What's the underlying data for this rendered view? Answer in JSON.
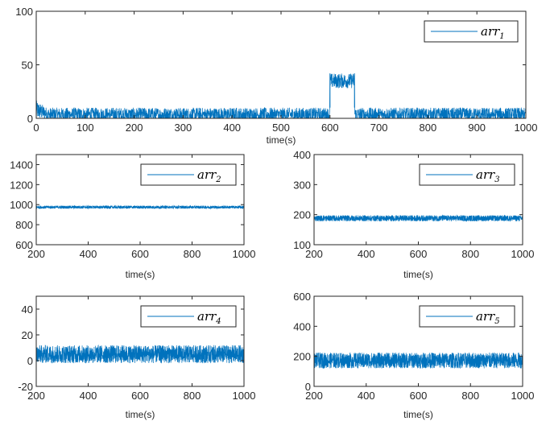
{
  "chart_data": [
    {
      "type": "line",
      "xlabel": "time(s)",
      "xlim": [
        0,
        1000
      ],
      "ylim": [
        0,
        100
      ],
      "xticks": [
        "0",
        "100",
        "200",
        "300",
        "400",
        "500",
        "600",
        "700",
        "800",
        "900",
        "1000"
      ],
      "yticks": [
        "0",
        "50",
        "100"
      ],
      "legend": {
        "position": "top-right",
        "base": "arr",
        "sub": "1"
      },
      "series": [
        {
          "baseline": 0,
          "noise_range": [
            -3,
            10
          ],
          "initial_spike": 17,
          "step": {
            "x_range": [
              600,
              650
            ],
            "y_range": [
              28,
              42
            ]
          }
        }
      ],
      "color": "#0072BD"
    },
    {
      "type": "line",
      "xlabel": "time(s)",
      "xlim": [
        200,
        1000
      ],
      "ylim": [
        600,
        1500
      ],
      "xticks": [
        "200",
        "400",
        "600",
        "800",
        "1000"
      ],
      "yticks": [
        "600",
        "800",
        "1000",
        "1200",
        "1400"
      ],
      "legend": {
        "position": "top-right",
        "base": "arr",
        "sub": "2"
      },
      "series": [
        {
          "noise_range": [
            960,
            990
          ]
        }
      ],
      "color": "#0072BD"
    },
    {
      "type": "line",
      "xlabel": "time(s)",
      "xlim": [
        200,
        1000
      ],
      "ylim": [
        100,
        400
      ],
      "xticks": [
        "200",
        "400",
        "600",
        "800",
        "1000"
      ],
      "yticks": [
        "100",
        "200",
        "300",
        "400"
      ],
      "legend": {
        "position": "top-right",
        "base": "arr",
        "sub": "3"
      },
      "series": [
        {
          "noise_range": [
            178,
            198
          ]
        }
      ],
      "color": "#0072BD"
    },
    {
      "type": "line",
      "xlabel": "time(s)",
      "xlim": [
        200,
        1000
      ],
      "ylim": [
        -20,
        50
      ],
      "xticks": [
        "200",
        "400",
        "600",
        "800",
        "1000"
      ],
      "yticks": [
        "-20",
        "0",
        "20",
        "40"
      ],
      "legend": {
        "position": "top-right",
        "base": "arr",
        "sub": "4"
      },
      "series": [
        {
          "noise_range": [
            -2,
            12
          ]
        }
      ],
      "color": "#0072BD"
    },
    {
      "type": "line",
      "xlabel": "time(s)",
      "xlim": [
        200,
        1000
      ],
      "ylim": [
        0,
        600
      ],
      "xticks": [
        "200",
        "400",
        "600",
        "800",
        "1000"
      ],
      "yticks": [
        "0",
        "200",
        "400",
        "600"
      ],
      "legend": {
        "position": "top-right",
        "base": "arr",
        "sub": "5"
      },
      "series": [
        {
          "noise_range": [
            120,
            225
          ]
        }
      ],
      "color": "#0072BD"
    }
  ]
}
